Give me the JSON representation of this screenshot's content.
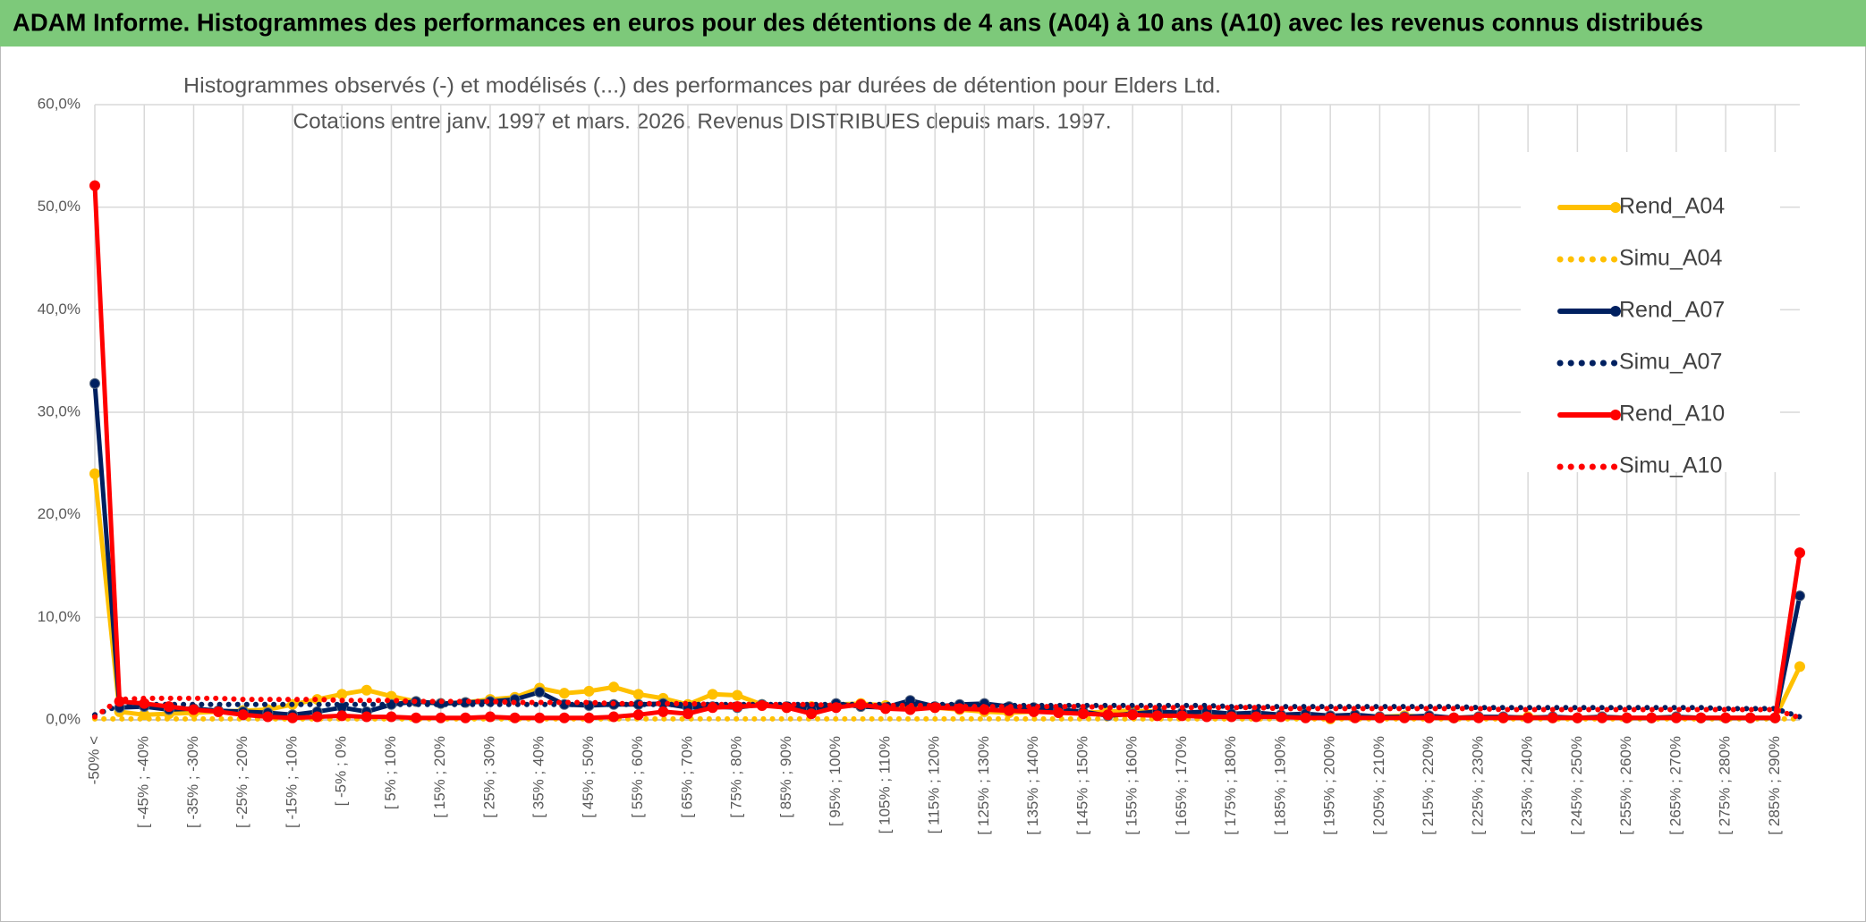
{
  "chart_data": {
    "type": "line",
    "title": "ADAM Informe. Histogrammes des performances en euros pour des détentions de 4 ans (A04) à 10 ans (A10) avec les revenus connus distribués",
    "subtitle": [
      "Histogrammes observés (-) et modélisés (...) des performances par durées de détention pour Elders Ltd.",
      "Cotations entre janv. 1997 et mars. 2026. Revenus DISTRIBUES depuis mars. 1997."
    ],
    "categories": [
      "-50% <",
      null,
      "[ -45% ; -40%",
      null,
      "[ -35% ; -30%",
      null,
      "[ -25% ; -20%",
      null,
      "[ -15% ; -10%",
      null,
      "[ -5% ; 0%",
      null,
      "[ 5% ; 10%",
      null,
      "[ 15% ; 20%",
      null,
      "[ 25% ; 30%",
      null,
      "[ 35% ; 40%",
      null,
      "[ 45% ; 50%",
      null,
      "[ 55% ; 60%",
      null,
      "[ 65% ; 70%",
      null,
      "[ 75% ; 80%",
      null,
      "[ 85% ; 90%",
      null,
      "[ 95% ; 100%",
      null,
      "[ 105% ; 110%",
      null,
      "[ 115% ; 120%",
      null,
      "[ 125% ; 130%",
      null,
      "[ 135% ; 140%",
      null,
      "[ 145% ; 150%",
      null,
      "[ 155% ; 160%",
      null,
      "[ 165% ; 170%",
      null,
      "[ 175% ; 180%",
      null,
      "[ 185% ; 190%",
      null,
      "[ 195% ; 200%",
      null,
      "[ 205% ; 210%",
      null,
      "[ 215% ; 220%",
      null,
      "[ 225% ; 230%",
      null,
      "[ 235% ; 240%",
      null,
      "[ 245% ; 250%",
      null,
      "[ 255% ; 260%",
      null,
      "[ 265% ; 270%",
      null,
      "[ 275% ; 280%",
      null,
      "[ 285% ; 290%",
      null
    ],
    "series": [
      {
        "name": "Rend_A04",
        "color": "#FFC000",
        "style": "solid",
        "values": [
          24.0,
          0.8,
          0.5,
          0.6,
          0.7,
          0.8,
          0.9,
          1.0,
          1.5,
          2.0,
          2.5,
          2.9,
          2.3,
          1.8,
          1.6,
          1.7,
          2.0,
          2.2,
          3.1,
          2.6,
          2.8,
          3.2,
          2.5,
          2.1,
          1.5,
          2.5,
          2.4,
          1.5,
          1.2,
          1.3,
          1.5,
          1.6,
          1.4,
          1.3,
          1.2,
          1.0,
          0.8,
          0.7,
          0.8,
          0.9,
          0.7,
          0.8,
          0.9,
          0.8,
          0.6,
          0.7,
          0.5,
          0.6,
          0.4,
          0.5,
          0.1,
          0.4,
          0.3,
          0.4,
          0.3,
          0.2,
          0.3,
          0.2,
          0.3,
          0.2,
          0.2,
          0.3,
          0.2,
          0.2,
          0.3,
          0.2,
          0.2,
          0.2,
          0.2,
          5.2
        ]
      },
      {
        "name": "Simu_A04",
        "color": "#FFC000",
        "style": "dotted",
        "values": [
          0.1,
          0.1,
          0.1,
          0.1,
          0.1,
          0.1,
          0.1,
          0.1,
          0.1,
          0.1,
          0.1,
          0.1,
          0.1,
          0.1,
          0.1,
          0.1,
          0.1,
          0.1,
          0.1,
          0.1,
          0.1,
          0.1,
          0.1,
          0.1,
          0.1,
          0.1,
          0.1,
          0.1,
          0.1,
          0.1,
          0.1,
          0.1,
          0.1,
          0.1,
          0.1,
          0.1,
          0.1,
          0.1,
          0.1,
          0.1,
          0.1,
          0.1,
          0.1,
          0.1,
          0.1,
          0.1,
          0.1,
          0.1,
          0.1,
          0.1,
          0.1,
          0.1,
          0.1,
          0.1,
          0.1,
          0.1,
          0.1,
          0.1,
          0.1,
          0.1,
          0.1,
          0.1,
          0.1,
          0.1,
          0.1,
          0.1,
          0.1,
          0.1,
          0.1,
          0.1
        ]
      },
      {
        "name": "Rend_A07",
        "color": "#002060",
        "style": "solid",
        "values": [
          32.8,
          1.2,
          1.3,
          1.0,
          1.1,
          0.9,
          0.8,
          0.7,
          0.5,
          0.8,
          1.2,
          0.8,
          1.5,
          1.8,
          1.6,
          1.7,
          1.8,
          2.0,
          2.7,
          1.5,
          1.4,
          1.5,
          1.5,
          1.6,
          1.2,
          1.3,
          1.2,
          1.5,
          1.3,
          1.0,
          1.6,
          1.3,
          1.2,
          1.9,
          1.3,
          1.5,
          1.6,
          1.3,
          1.2,
          1.0,
          0.8,
          0.4,
          0.6,
          0.8,
          0.7,
          0.8,
          0.6,
          0.7,
          0.5,
          0.6,
          0.4,
          0.5,
          0.3,
          0.3,
          0.4,
          0.2,
          0.3,
          0.3,
          0.2,
          0.3,
          0.2,
          0.3,
          0.2,
          0.2,
          0.3,
          0.2,
          0.2,
          0.2,
          0.2,
          12.1
        ]
      },
      {
        "name": "Simu_A07",
        "color": "#002060",
        "style": "dotted",
        "values": [
          0.5,
          1.4,
          1.5,
          1.5,
          1.5,
          1.5,
          1.5,
          1.5,
          1.5,
          1.5,
          1.5,
          1.5,
          1.5,
          1.5,
          1.5,
          1.5,
          1.5,
          1.5,
          1.5,
          1.5,
          1.5,
          1.5,
          1.5,
          1.5,
          1.5,
          1.5,
          1.5,
          1.5,
          1.5,
          1.5,
          1.5,
          1.5,
          1.5,
          1.5,
          1.5,
          1.5,
          1.4,
          1.4,
          1.4,
          1.4,
          1.4,
          1.4,
          1.4,
          1.4,
          1.4,
          1.4,
          1.3,
          1.3,
          1.3,
          1.3,
          1.3,
          1.3,
          1.3,
          1.3,
          1.3,
          1.3,
          1.2,
          1.2,
          1.2,
          1.2,
          1.2,
          1.2,
          1.2,
          1.2,
          1.2,
          1.2,
          1.1,
          1.1,
          1.1,
          0.3
        ]
      },
      {
        "name": "Rend_A10",
        "color": "#FF0000",
        "style": "solid",
        "values": [
          52.1,
          1.8,
          1.6,
          1.3,
          1.0,
          0.8,
          0.5,
          0.3,
          0.2,
          0.3,
          0.4,
          0.3,
          0.3,
          0.2,
          0.2,
          0.2,
          0.3,
          0.2,
          0.2,
          0.2,
          0.2,
          0.3,
          0.5,
          0.8,
          0.6,
          1.2,
          1.3,
          1.4,
          1.2,
          0.6,
          1.2,
          1.5,
          1.1,
          1.0,
          1.2,
          1.1,
          1.0,
          0.9,
          0.8,
          0.7,
          0.6,
          0.5,
          0.5,
          0.4,
          0.4,
          0.3,
          0.3,
          0.3,
          0.3,
          0.2,
          0.2,
          0.2,
          0.2,
          0.2,
          0.2,
          0.2,
          0.2,
          0.2,
          0.2,
          0.2,
          0.2,
          0.2,
          0.2,
          0.2,
          0.2,
          0.2,
          0.2,
          0.2,
          0.2,
          16.3
        ]
      },
      {
        "name": "Simu_A10",
        "color": "#FF0000",
        "style": "dotted",
        "values": [
          0.3,
          2.0,
          2.1,
          2.1,
          2.1,
          2.1,
          2.0,
          2.0,
          2.0,
          2.0,
          1.9,
          1.9,
          1.9,
          1.8,
          1.8,
          1.8,
          1.8,
          1.7,
          1.7,
          1.7,
          1.7,
          1.6,
          1.6,
          1.6,
          1.6,
          1.5,
          1.5,
          1.5,
          1.5,
          1.5,
          1.4,
          1.4,
          1.4,
          1.4,
          1.4,
          1.3,
          1.3,
          1.3,
          1.3,
          1.3,
          1.3,
          1.2,
          1.2,
          1.2,
          1.2,
          1.2,
          1.2,
          1.2,
          1.1,
          1.1,
          1.1,
          1.1,
          1.1,
          1.1,
          1.1,
          1.1,
          1.1,
          1.0,
          1.0,
          1.0,
          1.0,
          1.0,
          1.0,
          1.0,
          1.0,
          1.0,
          1.0,
          1.0,
          1.0,
          0.2
        ]
      }
    ],
    "ylim": [
      0,
      60
    ],
    "yticks": [
      {
        "value": 0,
        "label": "0,0%"
      },
      {
        "value": 10,
        "label": "10,0%"
      },
      {
        "value": 20,
        "label": "20,0%"
      },
      {
        "value": 30,
        "label": "30,0%"
      },
      {
        "value": 40,
        "label": "40,0%"
      },
      {
        "value": 50,
        "label": "50,0%"
      },
      {
        "value": 60,
        "label": "60,0%"
      }
    ],
    "grid": true,
    "legend": "right"
  }
}
